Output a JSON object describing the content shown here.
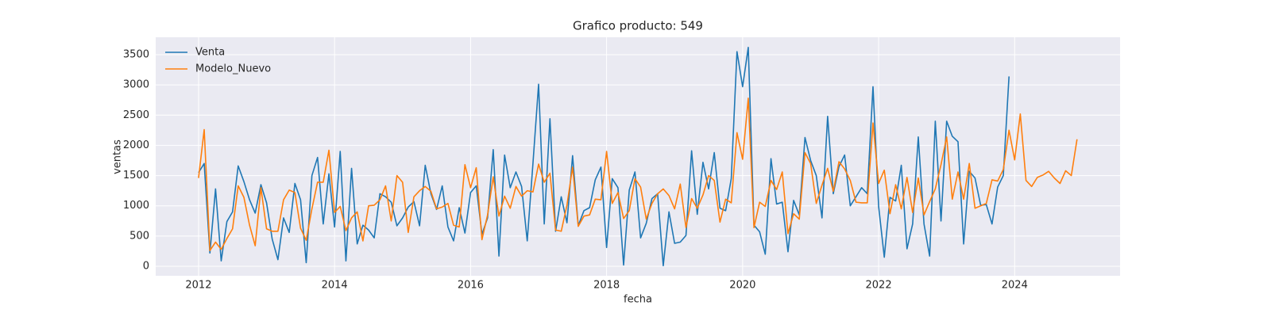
{
  "chart_data": {
    "type": "line",
    "title": "Grafico producto: 549",
    "xlabel": "fecha",
    "ylabel": "ventas",
    "x": [
      2012,
      2012.083,
      2012.167,
      2012.25,
      2012.333,
      2012.417,
      2012.5,
      2012.583,
      2012.667,
      2012.75,
      2012.833,
      2012.917,
      2013,
      2013.083,
      2013.167,
      2013.25,
      2013.333,
      2013.417,
      2013.5,
      2013.583,
      2013.667,
      2013.75,
      2013.833,
      2013.917,
      2014,
      2014.083,
      2014.167,
      2014.25,
      2014.333,
      2014.417,
      2014.5,
      2014.583,
      2014.667,
      2014.75,
      2014.833,
      2014.917,
      2015,
      2015.083,
      2015.167,
      2015.25,
      2015.333,
      2015.417,
      2015.5,
      2015.583,
      2015.667,
      2015.75,
      2015.833,
      2015.917,
      2016,
      2016.083,
      2016.167,
      2016.25,
      2016.333,
      2016.417,
      2016.5,
      2016.583,
      2016.667,
      2016.75,
      2016.833,
      2016.917,
      2017,
      2017.083,
      2017.167,
      2017.25,
      2017.333,
      2017.417,
      2017.5,
      2017.583,
      2017.667,
      2017.75,
      2017.833,
      2017.917,
      2018,
      2018.083,
      2018.167,
      2018.25,
      2018.333,
      2018.417,
      2018.5,
      2018.583,
      2018.667,
      2018.75,
      2018.833,
      2018.917,
      2019,
      2019.083,
      2019.167,
      2019.25,
      2019.333,
      2019.417,
      2019.5,
      2019.583,
      2019.667,
      2019.75,
      2019.833,
      2019.917,
      2020,
      2020.083,
      2020.167,
      2020.25,
      2020.333,
      2020.417,
      2020.5,
      2020.583,
      2020.667,
      2020.75,
      2020.833,
      2020.917,
      2021,
      2021.083,
      2021.167,
      2021.25,
      2021.333,
      2021.417,
      2021.5,
      2021.583,
      2021.667,
      2021.75,
      2021.833,
      2021.917,
      2022,
      2022.083,
      2022.167,
      2022.25,
      2022.333,
      2022.417,
      2022.5,
      2022.583,
      2022.667,
      2022.75,
      2022.833,
      2022.917,
      2023,
      2023.083,
      2023.167,
      2023.25,
      2023.333,
      2023.417,
      2023.5,
      2023.583,
      2023.667,
      2023.75,
      2023.833,
      2023.917,
      2024,
      2024.083,
      2024.167,
      2024.25,
      2024.333,
      2024.417,
      2024.5,
      2024.583,
      2024.667,
      2024.75,
      2024.833,
      2024.917
    ],
    "series": [
      {
        "name": "Venta",
        "color": "#1f77b4",
        "values": [
          1550,
          1700,
          220,
          1280,
          90,
          740,
          900,
          1660,
          1400,
          1100,
          880,
          1350,
          1050,
          450,
          110,
          800,
          560,
          1370,
          1100,
          60,
          1500,
          1800,
          700,
          1530,
          650,
          1900,
          90,
          1620,
          370,
          680,
          600,
          470,
          1200,
          1150,
          1060,
          670,
          800,
          980,
          1070,
          670,
          1670,
          1200,
          940,
          1330,
          650,
          420,
          970,
          550,
          1220,
          1330,
          530,
          800,
          1930,
          170,
          1840,
          1300,
          1560,
          1320,
          420,
          1700,
          3010,
          700,
          2440,
          580,
          1150,
          720,
          1830,
          670,
          920,
          970,
          1430,
          1640,
          310,
          1450,
          1300,
          20,
          1260,
          1560,
          470,
          710,
          1120,
          1200,
          10,
          900,
          380,
          400,
          510,
          1910,
          860,
          1720,
          1280,
          1880,
          960,
          920,
          1450,
          3550,
          2970,
          3620,
          680,
          570,
          200,
          1780,
          1030,
          1060,
          240,
          1090,
          850,
          2130,
          1750,
          1500,
          800,
          2480,
          1200,
          1650,
          1840,
          1000,
          1150,
          1300,
          1200,
          2970,
          990,
          150,
          1140,
          1080,
          1670,
          290,
          700,
          2140,
          700,
          170,
          2400,
          750,
          2400,
          2150,
          2060,
          370,
          1570,
          1460,
          1010,
          1020,
          700,
          1310,
          1500,
          3140,
          null,
          null,
          null,
          null,
          null,
          null,
          null,
          null,
          null,
          null,
          null,
          null
        ]
      },
      {
        "name": "Modelo_Nuevo",
        "color": "#ff7f0e",
        "values": [
          1460,
          2260,
          260,
          400,
          280,
          460,
          620,
          1330,
          1140,
          680,
          340,
          1300,
          620,
          580,
          580,
          1100,
          1260,
          1220,
          630,
          430,
          950,
          1390,
          1390,
          1920,
          890,
          990,
          590,
          800,
          900,
          420,
          1000,
          1010,
          1100,
          1330,
          750,
          1500,
          1390,
          560,
          1150,
          1250,
          1320,
          1240,
          950,
          980,
          1040,
          680,
          650,
          1680,
          1300,
          1630,
          440,
          850,
          1480,
          830,
          1160,
          960,
          1320,
          1160,
          1250,
          1230,
          1690,
          1390,
          1540,
          600,
          580,
          1010,
          1640,
          660,
          830,
          850,
          1110,
          1100,
          1900,
          1040,
          1220,
          790,
          920,
          1450,
          1310,
          780,
          1040,
          1200,
          1280,
          1170,
          950,
          1360,
          640,
          1120,
          960,
          1180,
          1500,
          1420,
          730,
          1110,
          1050,
          2210,
          1770,
          2780,
          640,
          1060,
          990,
          1420,
          1270,
          1560,
          540,
          870,
          780,
          1880,
          1700,
          1040,
          1340,
          1620,
          1240,
          1730,
          1610,
          1420,
          1060,
          1050,
          1050,
          2370,
          1370,
          1590,
          870,
          1350,
          950,
          1470,
          890,
          1460,
          850,
          1070,
          1280,
          1680,
          2140,
          1110,
          1560,
          1110,
          1700,
          960,
          1000,
          1040,
          1430,
          1410,
          1600,
          2250,
          1760,
          2520,
          1420,
          1320,
          1470,
          1510,
          1570,
          1460,
          1370,
          1580,
          1500,
          2100
        ]
      }
    ],
    "xlim": [
      2011.37,
      2025.55
    ],
    "xticks": [
      2012,
      2014,
      2016,
      2018,
      2020,
      2022,
      2024
    ],
    "ylim": [
      -157,
      3788
    ],
    "yticks": [
      0,
      500,
      1000,
      1500,
      2000,
      2500,
      3000,
      3500
    ],
    "grid": true,
    "legend": "upper-left"
  }
}
